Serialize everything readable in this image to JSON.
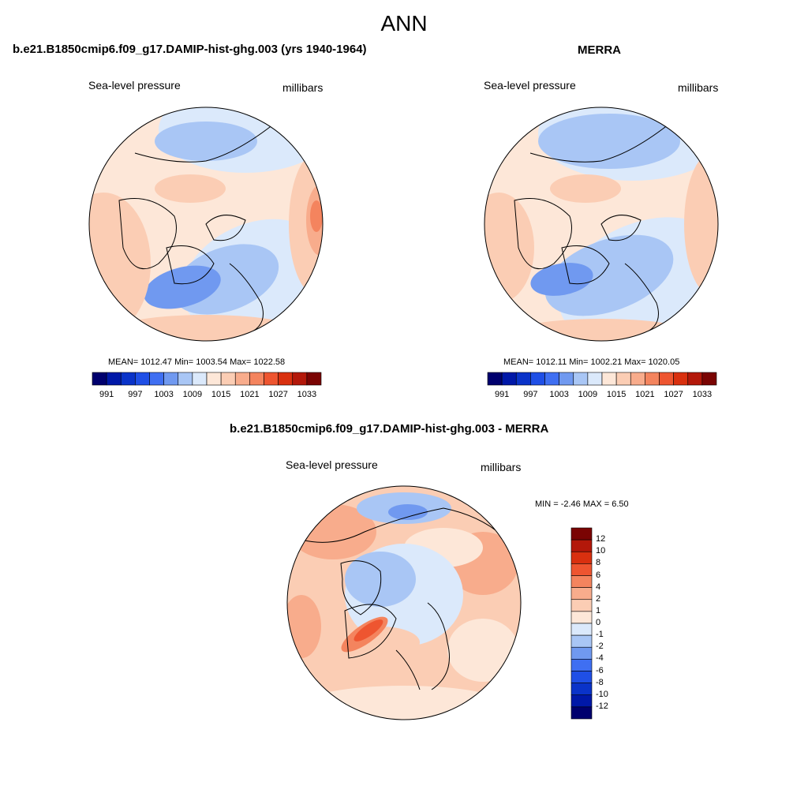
{
  "main_title": "ANN",
  "panel1": {
    "title": "b.e21.B1850cmip6.f09_g17.DAMIP-hist-ghg.003 (yrs 1940-1964)",
    "left_label": "Sea-level pressure",
    "right_label": "millibars",
    "stats": "MEAN= 1012.47  Min= 1003.54  Max= 1022.58"
  },
  "panel2": {
    "title": "MERRA",
    "left_label": "Sea-level pressure",
    "right_label": "millibars",
    "stats": "MEAN= 1012.11  Min= 1002.21  Max= 1020.05"
  },
  "panel3": {
    "title": "b.e21.B1850cmip6.f09_g17.DAMIP-hist-ghg.003 - MERRA",
    "left_label": "Sea-level pressure",
    "right_label": "millibars",
    "minmax": "MIN =  -2.46 MAX =   6.50"
  },
  "colorbar_abs": {
    "colors": [
      "#00006e",
      "#0018a8",
      "#0a33c9",
      "#1f4fe6",
      "#3f6ff2",
      "#7099f0",
      "#a9c6f5",
      "#dbe9fb",
      "#fde7d8",
      "#fbcdb4",
      "#f8ac8c",
      "#f4845e",
      "#ee5530",
      "#d9300f",
      "#b3180a",
      "#7a0403"
    ],
    "ticks": [
      "991",
      "997",
      "1003",
      "1009",
      "1015",
      "1021",
      "1027",
      "1033"
    ]
  },
  "colorbar_diff": {
    "colors": [
      "#00006e",
      "#0018a8",
      "#0a33c9",
      "#1f4fe6",
      "#3f6ff2",
      "#7099f0",
      "#a9c6f5",
      "#dbe9fb",
      "#fde7d8",
      "#fbcdb4",
      "#f8ac8c",
      "#f4845e",
      "#ee5530",
      "#d9300f",
      "#b3180a",
      "#7a0403"
    ],
    "ticks": [
      "12",
      "10",
      "8",
      "6",
      "4",
      "2",
      "1",
      "0",
      "-1",
      "-2",
      "-4",
      "-6",
      "-8",
      "-10",
      "-12"
    ]
  }
}
